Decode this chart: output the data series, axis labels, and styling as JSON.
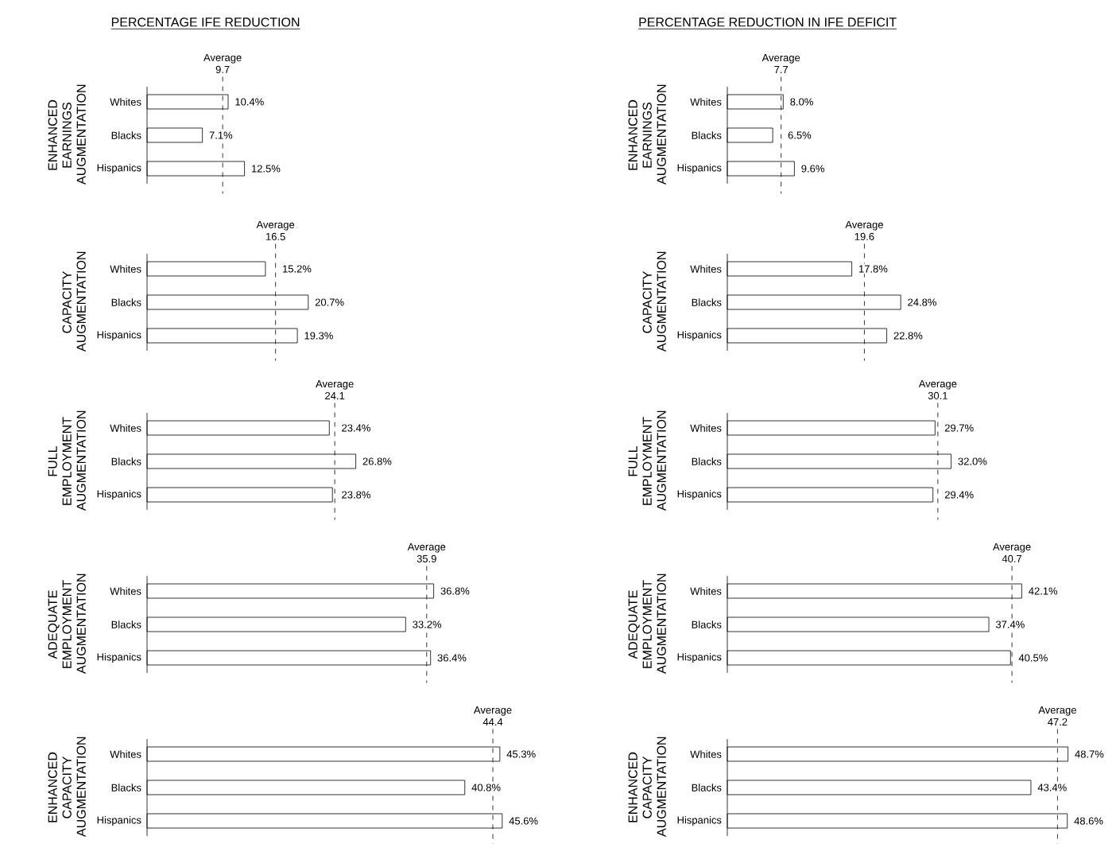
{
  "chart_data": [
    {
      "type": "bar",
      "orientation": "horizontal",
      "title": "PERCENTAGE IFE REDUCTION",
      "ylabel": "ENHANCED EARNINGS AUGMENTATION",
      "categories": [
        "Whites",
        "Blacks",
        "Hispanics"
      ],
      "values": [
        10.4,
        7.1,
        12.5
      ],
      "value_labels": [
        "10.4%",
        "7.1%",
        "12.5%"
      ],
      "color": "#ffffff",
      "tick_labels": "y",
      "ref_lines": [
        {
          "axis": "x",
          "value": 9.7,
          "label": "Average 9.7",
          "line_style": "dashed"
        }
      ]
    },
    {
      "type": "bar",
      "orientation": "horizontal",
      "title": "PERCENTAGE REDUCTION IN IFE DEFICIT",
      "ylabel": "ENHANCED EARNINGS AUGMENTATION",
      "categories": [
        "Whites",
        "Blacks",
        "Hispanics"
      ],
      "values": [
        8.0,
        6.5,
        9.6
      ],
      "value_labels": [
        "8.0%",
        "6.5%",
        "9.6%"
      ],
      "color": "#ffffff",
      "tick_labels": "y",
      "ref_lines": [
        {
          "axis": "x",
          "value": 7.7,
          "label": "Average 7.7",
          "line_style": "dashed"
        }
      ]
    },
    {
      "type": "bar",
      "orientation": "horizontal",
      "ylabel": "CAPACITY AUGMENTATION",
      "categories": [
        "Whites",
        "Blacks",
        "Hispanics"
      ],
      "values": [
        15.2,
        20.7,
        19.3
      ],
      "value_labels": [
        "15.2%",
        "20.7%",
        "19.3%"
      ],
      "color": "#ffffff",
      "tick_labels": "y",
      "ref_lines": [
        {
          "axis": "x",
          "value": 16.5,
          "label": "Average 16.5",
          "line_style": "dashed"
        }
      ]
    },
    {
      "type": "bar",
      "orientation": "horizontal",
      "ylabel": "CAPACITY AUGMENTATION",
      "categories": [
        "Whites",
        "Blacks",
        "Hispanics"
      ],
      "values": [
        17.8,
        24.8,
        22.8
      ],
      "value_labels": [
        "17.8%",
        "24.8%",
        "22.8%"
      ],
      "color": "#ffffff",
      "tick_labels": "y",
      "ref_lines": [
        {
          "axis": "x",
          "value": 19.6,
          "label": "Average 19.6",
          "line_style": "dashed"
        }
      ]
    },
    {
      "type": "bar",
      "orientation": "horizontal",
      "ylabel": "FULL EMPLOYMENT AUGMENTATION",
      "categories": [
        "Whites",
        "Blacks",
        "Hispanics"
      ],
      "values": [
        23.4,
        26.8,
        23.8
      ],
      "value_labels": [
        "23.4%",
        "26.8%",
        "23.8%"
      ],
      "color": "#ffffff",
      "tick_labels": "y",
      "ref_lines": [
        {
          "axis": "x",
          "value": 24.1,
          "label": "Average 24.1",
          "line_style": "dashed"
        }
      ]
    },
    {
      "type": "bar",
      "orientation": "horizontal",
      "ylabel": "FULL EMPLOYMENT AUGMENTATION",
      "categories": [
        "Whites",
        "Blacks",
        "Hispanics"
      ],
      "values": [
        29.7,
        32.0,
        29.4
      ],
      "value_labels": [
        "29.7%",
        "32.0%",
        "29.4%"
      ],
      "color": "#ffffff",
      "tick_labels": "y",
      "ref_lines": [
        {
          "axis": "x",
          "value": 30.1,
          "label": "Average 30.1",
          "line_style": "dashed"
        }
      ]
    },
    {
      "type": "bar",
      "orientation": "horizontal",
      "ylabel": "ADEQUATE EMPLOYMENT AUGMENTATION",
      "categories": [
        "Whites",
        "Blacks",
        "Hispanics"
      ],
      "values": [
        36.8,
        33.2,
        36.4
      ],
      "value_labels": [
        "36.8%",
        "33.2%",
        "36.4%"
      ],
      "color": "#ffffff",
      "tick_labels": "y",
      "ref_lines": [
        {
          "axis": "x",
          "value": 35.9,
          "label": "Average 35.9",
          "line_style": "dashed"
        }
      ]
    },
    {
      "type": "bar",
      "orientation": "horizontal",
      "ylabel": "ADEQUATE EMPLOYMENT AUGMENTATION",
      "categories": [
        "Whites",
        "Blacks",
        "Hispanics"
      ],
      "values": [
        42.1,
        37.4,
        40.5
      ],
      "value_labels": [
        "42.1%",
        "37.4%",
        "40.5%"
      ],
      "color": "#ffffff",
      "tick_labels": "y",
      "ref_lines": [
        {
          "axis": "x",
          "value": 40.7,
          "label": "Average 40.7",
          "line_style": "dashed"
        }
      ]
    },
    {
      "type": "bar",
      "orientation": "horizontal",
      "ylabel": "ENHANCED CAPACITY AUGMENTATION",
      "categories": [
        "Whites",
        "Blacks",
        "Hispanics"
      ],
      "values": [
        45.3,
        40.8,
        45.6
      ],
      "value_labels": [
        "45.3%",
        "40.8%",
        "45.6%"
      ],
      "color": "#ffffff",
      "tick_labels": "y",
      "ref_lines": [
        {
          "axis": "x",
          "value": 44.4,
          "label": "Average 44.4",
          "line_style": "dashed"
        }
      ]
    },
    {
      "type": "bar",
      "orientation": "horizontal",
      "ylabel": "ENHANCED CAPACITY AUGMENTATION",
      "categories": [
        "Whites",
        "Blacks",
        "Hispanics"
      ],
      "values": [
        48.7,
        43.4,
        48.6
      ],
      "value_labels": [
        "48.7%",
        "43.4%",
        "48.6%"
      ],
      "color": "#ffffff",
      "tick_labels": "y",
      "ref_lines": [
        {
          "axis": "x",
          "value": 47.2,
          "label": "Average 47.2",
          "line_style": "dashed"
        }
      ]
    }
  ]
}
